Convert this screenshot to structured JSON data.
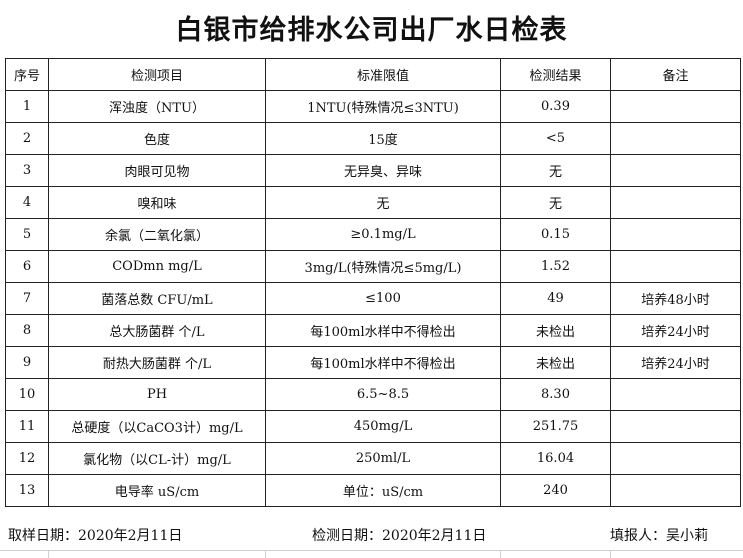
{
  "title": "白银市给排水公司出厂水日检表",
  "headers": [
    "序号",
    "检测项目",
    "标准限值",
    "检测结果",
    "备注"
  ],
  "rows": [
    [
      "1",
      "浑浊度（NTU）",
      "1NTU(特殊情况≤3NTU)",
      "0.39",
      ""
    ],
    [
      "2",
      "色度",
      "15度",
      "<5",
      ""
    ],
    [
      "3",
      "肉眼可见物",
      "无异臭、异味",
      "无",
      ""
    ],
    [
      "4",
      "嗅和味",
      "无",
      "无",
      ""
    ],
    [
      "5",
      "余氯（二氧化氯）",
      "≥0.1mg/L",
      "0.15",
      ""
    ],
    [
      "6",
      "CODmn mg/L",
      "3mg/L(特殊情况≤5mg/L)",
      "1.52",
      ""
    ],
    [
      "7",
      "菌落总数  CFU/mL",
      "≤100",
      "49",
      "培养48小时"
    ],
    [
      "8",
      "总大肠菌群 个/L",
      "每100ml水样中不得检出",
      "未检出",
      "培养24小时"
    ],
    [
      "9",
      "耐热大肠菌群 个/L",
      "每100ml水样中不得检出",
      "未检出",
      "培养24小时"
    ],
    [
      "10",
      "PH",
      "6.5~8.5",
      "8.30",
      ""
    ],
    [
      "11",
      "总硬度（以CaCO3计）mg/L",
      "450mg/L",
      "251.75",
      ""
    ],
    [
      "12",
      "氯化物（以CL-计）mg/L",
      "250ml/L",
      "16.04",
      ""
    ],
    [
      "13",
      "电导率 uS/cm",
      "单位：uS/cm",
      "240",
      ""
    ]
  ],
  "footer": {
    "sampling_date": "取样日期：2020年2月11日",
    "testing_date": "检测日期：2020年2月11日",
    "reporter": "填报人：吴小莉"
  }
}
